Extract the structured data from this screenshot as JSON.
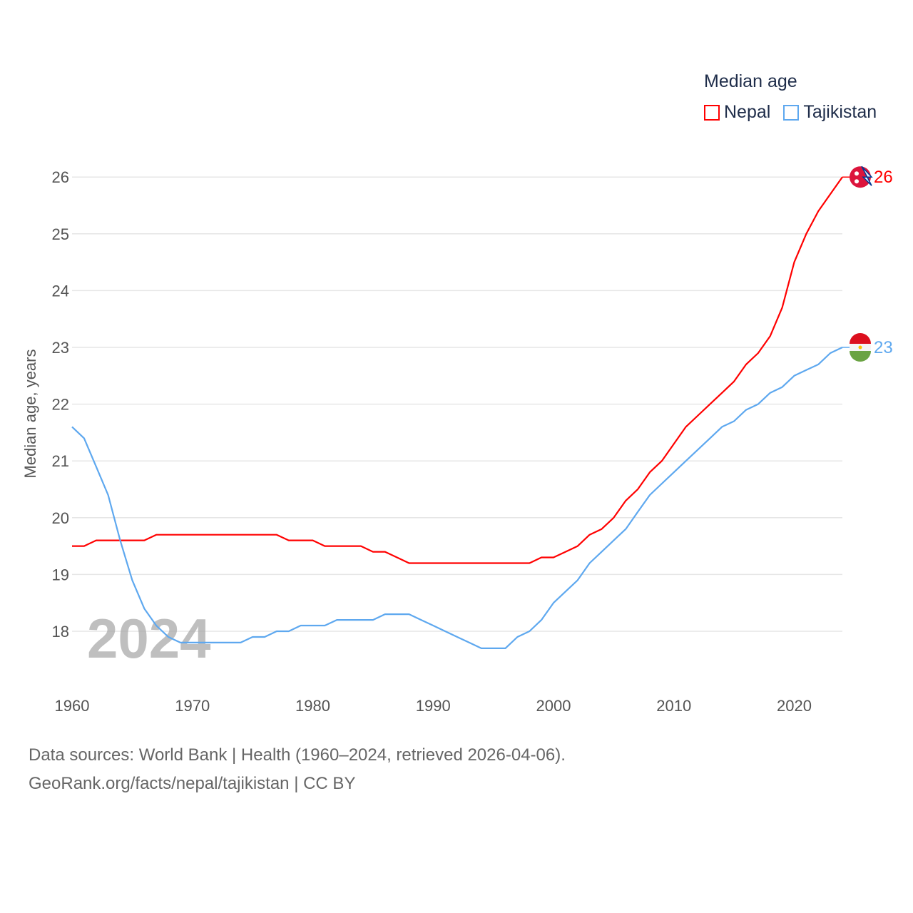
{
  "chart_data": {
    "type": "line",
    "title": "Median age",
    "xlabel": "",
    "ylabel": "Median age, years",
    "xlim": [
      1960,
      2024
    ],
    "ylim": [
      17,
      26
    ],
    "yticks": [
      18,
      19,
      20,
      21,
      22,
      23,
      24,
      25,
      26
    ],
    "xticks": [
      1960,
      1970,
      1980,
      1990,
      2000,
      2010,
      2020
    ],
    "grid": true,
    "legend_position": "top-right",
    "year_watermark": "2024",
    "x": [
      1960,
      1961,
      1962,
      1963,
      1964,
      1965,
      1966,
      1967,
      1968,
      1969,
      1970,
      1971,
      1972,
      1973,
      1974,
      1975,
      1976,
      1977,
      1978,
      1979,
      1980,
      1981,
      1982,
      1983,
      1984,
      1985,
      1986,
      1987,
      1988,
      1989,
      1990,
      1991,
      1992,
      1993,
      1994,
      1995,
      1996,
      1997,
      1998,
      1999,
      2000,
      2001,
      2002,
      2003,
      2004,
      2005,
      2006,
      2007,
      2008,
      2009,
      2010,
      2011,
      2012,
      2013,
      2014,
      2015,
      2016,
      2017,
      2018,
      2019,
      2020,
      2021,
      2022,
      2023,
      2024
    ],
    "series": [
      {
        "name": "Nepal",
        "color": "#ff0000",
        "end_label": "26",
        "values": [
          19.5,
          19.5,
          19.6,
          19.6,
          19.6,
          19.6,
          19.6,
          19.7,
          19.7,
          19.7,
          19.7,
          19.7,
          19.7,
          19.7,
          19.7,
          19.7,
          19.7,
          19.7,
          19.6,
          19.6,
          19.6,
          19.5,
          19.5,
          19.5,
          19.5,
          19.4,
          19.4,
          19.3,
          19.2,
          19.2,
          19.2,
          19.2,
          19.2,
          19.2,
          19.2,
          19.2,
          19.2,
          19.2,
          19.2,
          19.3,
          19.3,
          19.4,
          19.5,
          19.7,
          19.8,
          20.0,
          20.3,
          20.5,
          20.8,
          21.0,
          21.3,
          21.6,
          21.8,
          22.0,
          22.2,
          22.4,
          22.7,
          22.9,
          23.2,
          23.7,
          24.5,
          25.0,
          25.4,
          25.7,
          26.0
        ]
      },
      {
        "name": "Tajikistan",
        "color": "#5ea8ef",
        "end_label": "23",
        "values": [
          21.6,
          21.4,
          20.9,
          20.4,
          19.6,
          18.9,
          18.4,
          18.1,
          17.9,
          17.8,
          17.8,
          17.8,
          17.8,
          17.8,
          17.8,
          17.9,
          17.9,
          18.0,
          18.0,
          18.1,
          18.1,
          18.1,
          18.2,
          18.2,
          18.2,
          18.2,
          18.3,
          18.3,
          18.3,
          18.2,
          18.1,
          18.0,
          17.9,
          17.8,
          17.7,
          17.7,
          17.7,
          17.9,
          18.0,
          18.2,
          18.5,
          18.7,
          18.9,
          19.2,
          19.4,
          19.6,
          19.8,
          20.1,
          20.4,
          20.6,
          20.8,
          21.0,
          21.2,
          21.4,
          21.6,
          21.7,
          21.9,
          22.0,
          22.2,
          22.3,
          22.5,
          22.6,
          22.7,
          22.9,
          23.0
        ]
      }
    ]
  },
  "footer": {
    "source_line": "Data sources: World Bank | Health (1960–2024, retrieved 2026-04-06).",
    "attribution_line": "GeoRank.org/facts/nepal/tajikistan | CC BY"
  }
}
